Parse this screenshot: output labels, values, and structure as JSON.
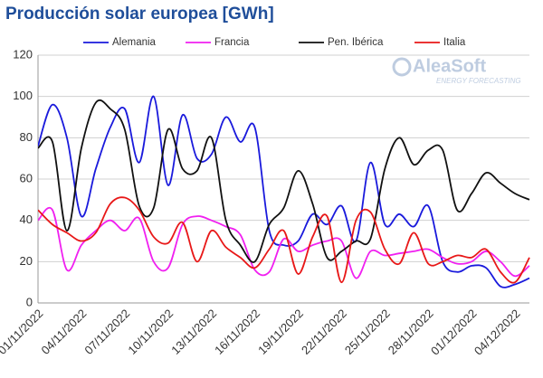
{
  "chart_data": {
    "type": "line",
    "title": "Producción solar europea [GWh]",
    "watermark": {
      "name": "AleaSoft",
      "tagline": "ENERGY FORECASTING"
    },
    "categories": [
      "01/11/2022",
      null,
      null,
      "04/11/2022",
      null,
      null,
      "07/11/2022",
      null,
      null,
      "10/11/2022",
      null,
      null,
      "13/11/2022",
      null,
      null,
      "16/11/2022",
      null,
      null,
      "19/11/2022",
      null,
      null,
      "22/11/2022",
      null,
      null,
      "25/11/2022",
      null,
      null,
      "28/11/2022",
      null,
      null,
      "01/12/2022",
      null,
      null,
      "04/12/2022",
      null
    ],
    "series": [
      {
        "name": "Alemania",
        "color": "#1a1adc",
        "values": [
          76,
          96,
          80,
          42,
          65,
          85,
          94,
          68,
          100,
          57,
          91,
          70,
          72,
          90,
          78,
          85,
          35,
          28,
          30,
          43,
          38,
          47,
          30,
          68,
          38,
          43,
          37,
          47,
          20,
          15,
          18,
          17,
          8,
          9,
          12
        ]
      },
      {
        "name": "Francia",
        "color": "#f020f0",
        "values": [
          40,
          45,
          16,
          28,
          35,
          40,
          35,
          41,
          20,
          17,
          38,
          42,
          40,
          37,
          33,
          16,
          15,
          31,
          25,
          28,
          30,
          30,
          12,
          25,
          23,
          24,
          25,
          26,
          22,
          19,
          20,
          25,
          20,
          13,
          18
        ]
      },
      {
        "name": "Pen. Ibérica",
        "color": "#111111",
        "values": [
          75,
          78,
          35,
          75,
          97,
          94,
          84,
          47,
          46,
          84,
          65,
          64,
          80,
          40,
          28,
          20,
          38,
          46,
          64,
          48,
          22,
          25,
          30,
          31,
          65,
          80,
          67,
          74,
          74,
          45,
          53,
          63,
          58,
          53,
          50
        ]
      },
      {
        "name": "Italia",
        "color": "#e81818",
        "values": [
          45,
          38,
          34,
          30,
          34,
          48,
          51,
          45,
          32,
          29,
          39,
          20,
          35,
          27,
          22,
          17,
          26,
          35,
          14,
          32,
          42,
          10,
          40,
          44,
          26,
          19,
          34,
          19,
          20,
          23,
          22,
          26,
          15,
          10,
          22
        ]
      }
    ],
    "ylim": [
      0,
      120
    ],
    "yticks": [
      0,
      20,
      40,
      60,
      80,
      100,
      120
    ],
    "grid": true
  }
}
